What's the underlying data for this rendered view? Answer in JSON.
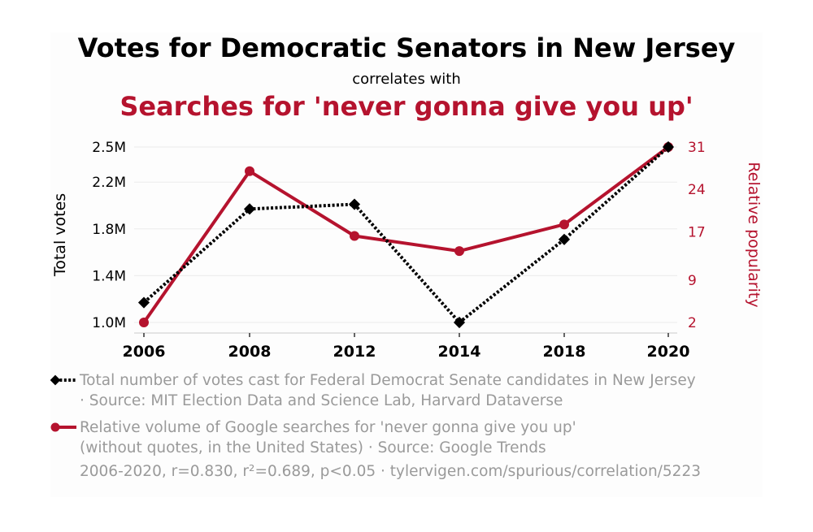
{
  "title": "Votes for Democratic Senators in New Jersey",
  "subtitle": "correlates with",
  "title2": "Searches for 'never gonna give you up'",
  "colors": {
    "series1": "#000000",
    "series2": "#b5132e",
    "muted": "#9a9a9a"
  },
  "chart_data": {
    "type": "line",
    "categories": [
      "2006",
      "2008",
      "2012",
      "2014",
      "2018",
      "2020"
    ],
    "series": [
      {
        "name": "Total votes",
        "axis": "left",
        "style": "dotted-diamond",
        "values": [
          1170000,
          1970000,
          2010000,
          1000000,
          1710000,
          2500000
        ]
      },
      {
        "name": "Relative popularity",
        "axis": "right",
        "style": "solid-circle",
        "values": [
          2,
          27,
          16.3,
          13.8,
          18.2,
          31
        ]
      }
    ],
    "ylabel_left": "Total votes",
    "ylabel_right": "Relative popularity",
    "yticks_left": [
      {
        "value": 1000000,
        "label": "1.0M"
      },
      {
        "value": 1400000,
        "label": "1.4M"
      },
      {
        "value": 1800000,
        "label": "1.8M"
      },
      {
        "value": 2200000,
        "label": "2.2M"
      },
      {
        "value": 2500000,
        "label": "2.5M"
      }
    ],
    "yticks_right": [
      {
        "value": 2,
        "label": "2"
      },
      {
        "value": 9,
        "label": "9"
      },
      {
        "value": 17,
        "label": "17"
      },
      {
        "value": 24,
        "label": "24"
      },
      {
        "value": 31,
        "label": "31"
      }
    ],
    "ylim_left": [
      1000000,
      2500000
    ],
    "ylim_right": [
      2,
      31
    ],
    "grid": true
  },
  "legend": {
    "item1_line1": "Total number of votes cast for Federal Democrat Senate candidates in New Jersey",
    "item1_line2": "· Source: MIT Election Data and Science Lab, Harvard Dataverse",
    "item2_line1": "Relative volume of Google searches for 'never gonna give you up'",
    "item2_line2": "(without quotes, in the United States) · Source: Google Trends"
  },
  "stats": "2006-2020, r=0.830, r²=0.689, p<0.05 · tylervigen.com/spurious/correlation/5223"
}
